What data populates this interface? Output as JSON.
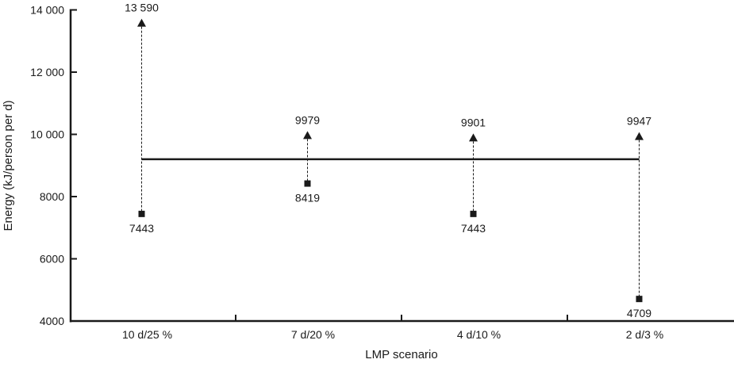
{
  "chart_data": {
    "type": "scatter",
    "title": "",
    "xlabel": "LMP scenario",
    "ylabel": "Energy (kJ/person per d)",
    "ylim": [
      4000,
      14000
    ],
    "yticks": [
      4000,
      6000,
      8000,
      10000,
      12000,
      14000
    ],
    "ytick_labels": [
      "4000",
      "6000",
      "8000",
      "10 000",
      "12 000",
      "14 000"
    ],
    "categories": [
      "10 d/25 %",
      "7 d/20 %",
      "4 d/10 %",
      "2 d/3 %"
    ],
    "series": [
      {
        "name": "upper",
        "marker": "triangle",
        "values": [
          13590,
          9979,
          9901,
          9947
        ],
        "labels": [
          "13 590",
          "9979",
          "9901",
          "9947"
        ]
      },
      {
        "name": "lower",
        "marker": "square",
        "values": [
          7443,
          8419,
          7443,
          4709
        ],
        "labels": [
          "7443",
          "8419",
          "7443",
          "4709"
        ]
      }
    ],
    "reference_line": {
      "value": 9200
    },
    "grid": false,
    "color": "#1a1a1a"
  }
}
